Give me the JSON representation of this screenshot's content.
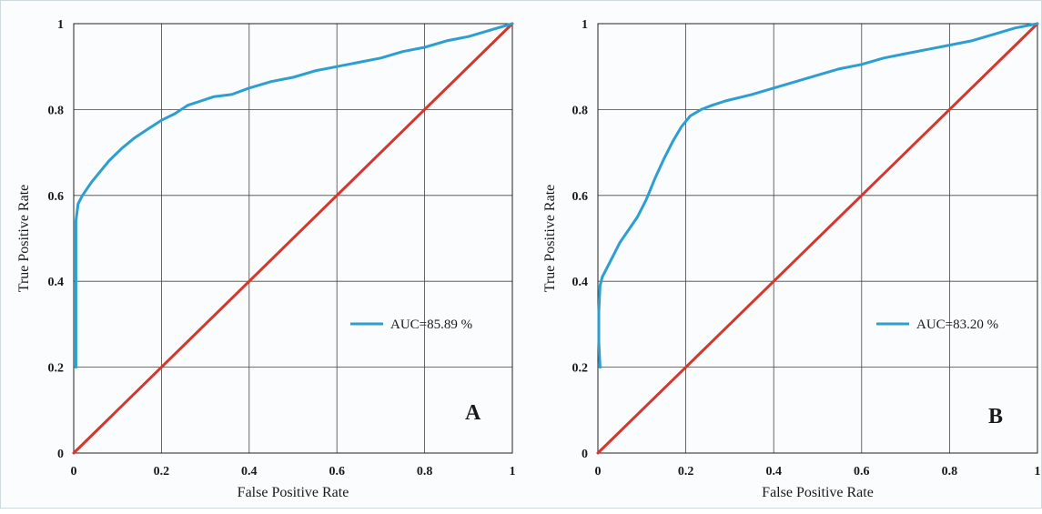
{
  "chart_data": [
    {
      "type": "line",
      "panel_label": "A",
      "xlabel": "False Positive Rate",
      "ylabel": "True Positive Rate",
      "xlim": [
        0,
        1
      ],
      "ylim": [
        0,
        1
      ],
      "xticks": [
        "0",
        "0.2",
        "0.4",
        "0.6",
        "0.8",
        "1"
      ],
      "yticks": [
        "0",
        "0.2",
        "0.4",
        "0.6",
        "0.8",
        "1"
      ],
      "grid": true,
      "legend_position": "center-right",
      "series": [
        {
          "name": "AUC=85.89 %",
          "color": "#2c9fd0",
          "x": [
            0.005,
            0.005,
            0.005,
            0.005,
            0.01,
            0.02,
            0.04,
            0.06,
            0.08,
            0.11,
            0.14,
            0.17,
            0.2,
            0.23,
            0.26,
            0.29,
            0.32,
            0.36,
            0.4,
            0.45,
            0.5,
            0.55,
            0.6,
            0.65,
            0.7,
            0.75,
            0.8,
            0.85,
            0.9,
            0.95,
            1.0
          ],
          "y": [
            0.2,
            0.33,
            0.45,
            0.54,
            0.58,
            0.6,
            0.63,
            0.655,
            0.68,
            0.71,
            0.735,
            0.755,
            0.775,
            0.79,
            0.81,
            0.82,
            0.83,
            0.835,
            0.85,
            0.865,
            0.875,
            0.89,
            0.9,
            0.91,
            0.92,
            0.935,
            0.945,
            0.96,
            0.97,
            0.985,
            1.0
          ]
        },
        {
          "color": "#d2382e",
          "x": [
            0,
            1
          ],
          "y": [
            0,
            1
          ]
        }
      ]
    },
    {
      "type": "line",
      "panel_label": "B",
      "xlabel": "False Positive Rate",
      "ylabel": "True Positive Rate",
      "xlim": [
        0,
        1
      ],
      "ylim": [
        0,
        1
      ],
      "xticks": [
        "0",
        "0.2",
        "0.4",
        "0.6",
        "0.8",
        "1"
      ],
      "yticks": [
        "0",
        "0.2",
        "0.4",
        "0.6",
        "0.8",
        "1"
      ],
      "grid": true,
      "legend_position": "center-right",
      "series": [
        {
          "name": "AUC=83.20 %",
          "color": "#2c9fd0",
          "x": [
            0.005,
            0.002,
            0.002,
            0.005,
            0.01,
            0.02,
            0.035,
            0.05,
            0.07,
            0.09,
            0.11,
            0.13,
            0.15,
            0.17,
            0.19,
            0.21,
            0.235,
            0.26,
            0.29,
            0.35,
            0.4,
            0.45,
            0.5,
            0.55,
            0.6,
            0.65,
            0.7,
            0.75,
            0.8,
            0.85,
            0.9,
            0.95,
            1.0
          ],
          "y": [
            0.2,
            0.26,
            0.33,
            0.39,
            0.41,
            0.43,
            0.46,
            0.49,
            0.52,
            0.55,
            0.59,
            0.64,
            0.685,
            0.725,
            0.76,
            0.785,
            0.8,
            0.81,
            0.82,
            0.835,
            0.85,
            0.865,
            0.88,
            0.895,
            0.905,
            0.92,
            0.93,
            0.94,
            0.95,
            0.96,
            0.975,
            0.99,
            1.0
          ]
        },
        {
          "color": "#d2382e",
          "x": [
            0,
            1
          ],
          "y": [
            0,
            1
          ]
        }
      ]
    }
  ]
}
